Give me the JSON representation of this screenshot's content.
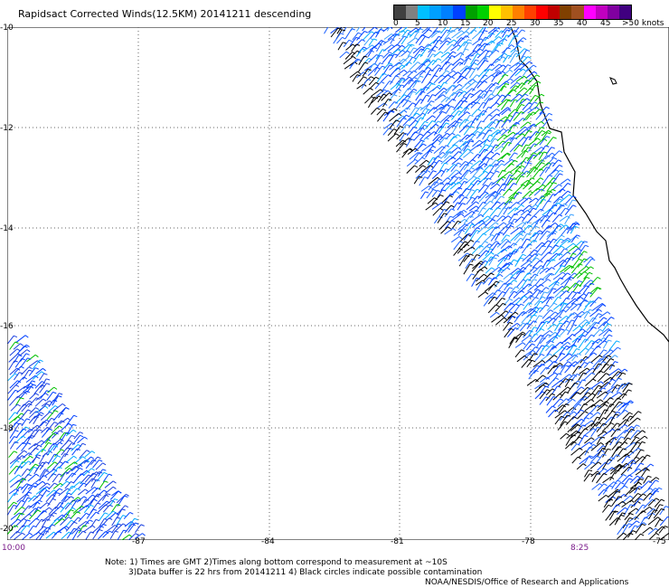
{
  "title": "Rapidsact Corrected Winds(12.5KM) 20141211 descending",
  "legend": {
    "colors": [
      "#404040",
      "#808080",
      "#00c0ff",
      "#00a0ff",
      "#0080ff",
      "#0040ff",
      "#00a000",
      "#00d000",
      "#ffff00",
      "#ffc000",
      "#ff8000",
      "#ff4000",
      "#ff0000",
      "#c00000",
      "#804000",
      "#a05020",
      "#ff00ff",
      "#c000c0",
      "#8000a0",
      "#400080"
    ],
    "labels": [
      "0",
      "5",
      "10",
      "15",
      "20",
      "25",
      "30",
      "35",
      "40",
      "45",
      ">50 knots"
    ]
  },
  "axes": {
    "lat_labels": [
      "-10",
      "-12",
      "-14",
      "-16",
      "-18",
      "-20"
    ],
    "lon_labels": [
      "-87",
      "-84",
      "-81",
      "-78",
      "-75"
    ]
  },
  "times": {
    "left": "10:00",
    "right": "8:25"
  },
  "notes": {
    "line1": "Note: 1) Times are GMT 2)Times along bottom correspond to measurement at ~10S",
    "line2": "3)Data buffer is 22 hrs from 20141211 4) Black circles indicate possible contamination",
    "credit": "NOAA/NESDIS/Office of Research and Applications"
  }
}
